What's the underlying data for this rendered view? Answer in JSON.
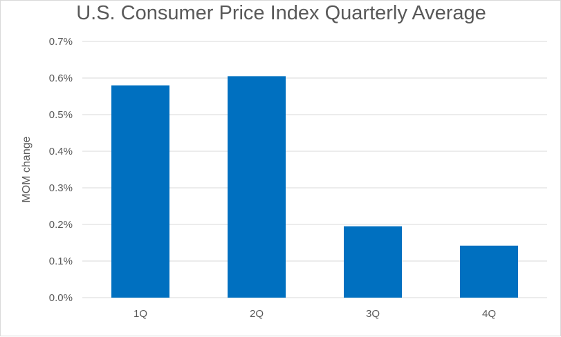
{
  "chart_data": {
    "type": "bar",
    "title": "U.S. Consumer Price Index Quarterly Average",
    "xlabel": "",
    "ylabel": "MOM change",
    "categories": [
      "1Q",
      "2Q",
      "3Q",
      "4Q"
    ],
    "values": [
      0.0058,
      0.00605,
      0.00195,
      0.00142
    ],
    "ylim": [
      0,
      0.007
    ],
    "yticks": [
      0,
      0.001,
      0.002,
      0.003,
      0.004,
      0.005,
      0.006,
      0.007
    ],
    "ytick_labels": [
      "0.0%",
      "0.1%",
      "0.2%",
      "0.3%",
      "0.4%",
      "0.5%",
      "0.6%",
      "0.7%"
    ],
    "grid": true,
    "legend": "none",
    "bar_color": "#0070c0",
    "grid_color": "#d9d9d9"
  }
}
